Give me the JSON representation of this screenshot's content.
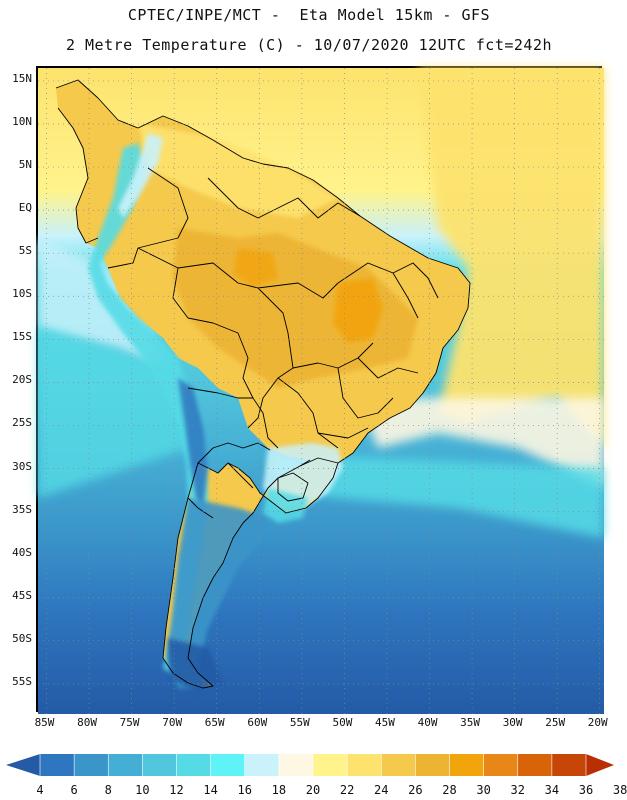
{
  "title": {
    "line1": "CPTEC/INPE/MCT -  Eta Model 15km - GFS",
    "line2": "2 Metre Temperature (C) - 10/07/2020 12UTC fct=242h"
  },
  "axes": {
    "lat_labels": [
      "15N",
      "10N",
      "5N",
      "EQ",
      "5S",
      "10S",
      "15S",
      "20S",
      "25S",
      "30S",
      "35S",
      "40S",
      "45S",
      "50S",
      "55S"
    ],
    "lon_labels": [
      "85W",
      "80W",
      "75W",
      "70W",
      "65W",
      "60W",
      "55W",
      "50W",
      "45W",
      "40W",
      "35W",
      "30W",
      "25W",
      "20W"
    ],
    "lat_range": [
      16.5,
      -58.5
    ],
    "lon_range": [
      -86,
      -19.5
    ]
  },
  "colorbar": {
    "labels": [
      "4",
      "6",
      "8",
      "10",
      "12",
      "14",
      "16",
      "18",
      "20",
      "22",
      "24",
      "26",
      "28",
      "30",
      "32",
      "34",
      "36",
      "38"
    ],
    "colors": [
      "#245aa6",
      "#2e76bf",
      "#3a95c9",
      "#45aed4",
      "#52c6dc",
      "#55dbe6",
      "#5ff3f8",
      "#c9f2fb",
      "#fdf7e3",
      "#fff38c",
      "#fde36e",
      "#f5c94c",
      "#edb434",
      "#f2a40c",
      "#e88617",
      "#d96309",
      "#c84508",
      "#b92e02"
    ]
  },
  "chart_data": {
    "type": "heatmap",
    "title": "2 Metre Temperature (C)",
    "model": "CPTEC/INPE/MCT - Eta Model 15km - GFS",
    "date": "10/07/2020 12UTC",
    "forecast_hour": "242h",
    "units": "C",
    "x_range": [
      -86,
      -19.5
    ],
    "y_range": [
      -58.5,
      16.5
    ],
    "color_levels": [
      4,
      6,
      8,
      10,
      12,
      14,
      16,
      18,
      20,
      22,
      24,
      26,
      28,
      30,
      32,
      34,
      36,
      38
    ]
  }
}
